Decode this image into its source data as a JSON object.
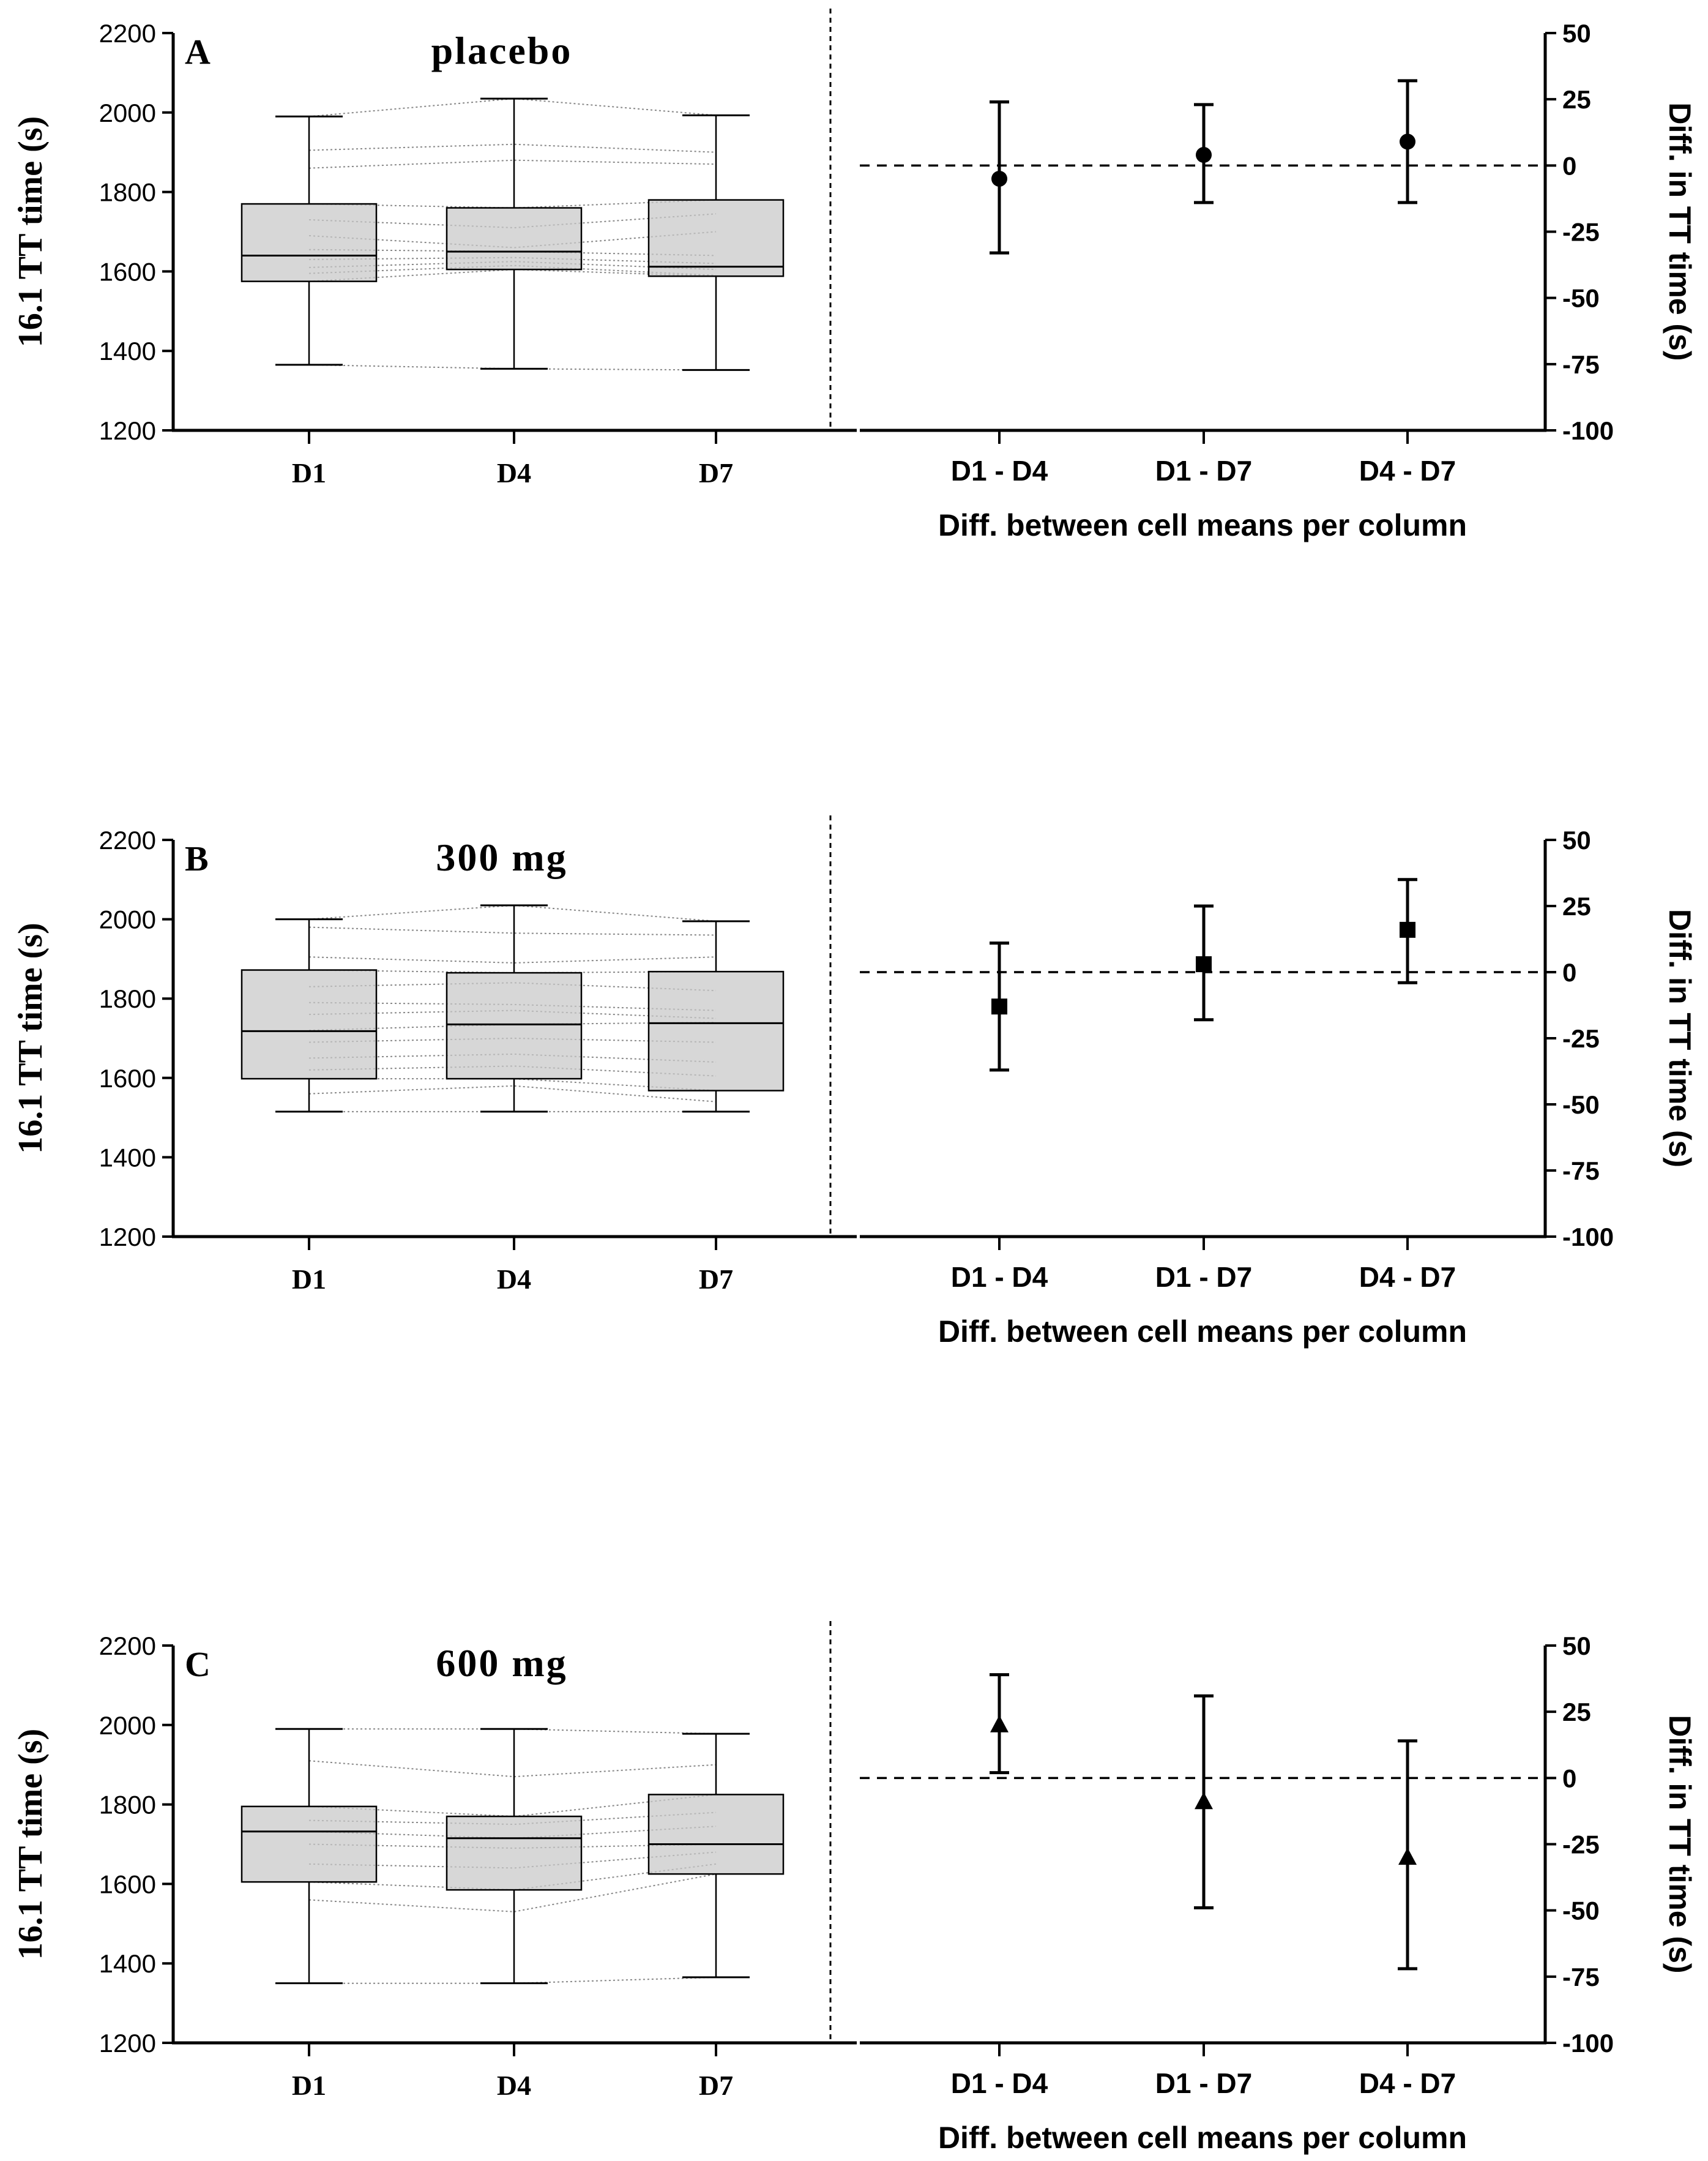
{
  "chart_data": [
    {
      "panel": "A",
      "title": "placebo",
      "left": {
        "type": "box",
        "ylabel": "16.1 TT time (s)",
        "ylim": [
          1200,
          2200
        ],
        "yticks": [
          1200,
          1400,
          1600,
          1800,
          2000,
          2200
        ],
        "categories": [
          "D1",
          "D4",
          "D7"
        ],
        "boxes": [
          {
            "min": 1365,
            "q1": 1575,
            "median": 1640,
            "q3": 1770,
            "max": 1990
          },
          {
            "min": 1355,
            "q1": 1605,
            "median": 1650,
            "q3": 1760,
            "max": 2035
          },
          {
            "min": 1352,
            "q1": 1588,
            "median": 1612,
            "q3": 1780,
            "max": 1993
          }
        ],
        "subjects": [
          [
            1990,
            2035,
            1993
          ],
          [
            1905,
            1920,
            1900
          ],
          [
            1860,
            1880,
            1870
          ],
          [
            1770,
            1760,
            1780
          ],
          [
            1730,
            1710,
            1745
          ],
          [
            1690,
            1660,
            1700
          ],
          [
            1655,
            1650,
            1640
          ],
          [
            1630,
            1635,
            1620
          ],
          [
            1610,
            1625,
            1605
          ],
          [
            1595,
            1615,
            1590
          ],
          [
            1575,
            1605,
            1588
          ],
          [
            1365,
            1355,
            1352
          ]
        ]
      },
      "right": {
        "type": "errorbar",
        "marker": "circle",
        "xlabel": "Diff. between cell means per column",
        "ylabel": "Diff. in TT time (s)",
        "ylim": [
          -100,
          50
        ],
        "yticks": [
          50,
          25,
          0,
          -25,
          -50,
          -75,
          -100
        ],
        "categories": [
          "D1 - D4",
          "D1 - D7",
          "D4 - D7"
        ],
        "values": [
          -5,
          4,
          9
        ],
        "lower": [
          -33,
          -14,
          -14
        ],
        "upper": [
          24,
          23,
          32
        ]
      }
    },
    {
      "panel": "B",
      "title": "300 mg",
      "left": {
        "type": "box",
        "ylabel": "16.1 TT time (s)",
        "ylim": [
          1200,
          2200
        ],
        "yticks": [
          1200,
          1400,
          1600,
          1800,
          2000,
          2200
        ],
        "categories": [
          "D1",
          "D4",
          "D7"
        ],
        "boxes": [
          {
            "min": 1515,
            "q1": 1598,
            "median": 1718,
            "q3": 1872,
            "max": 2000
          },
          {
            "min": 1515,
            "q1": 1598,
            "median": 1735,
            "q3": 1865,
            "max": 2035
          },
          {
            "min": 1515,
            "q1": 1568,
            "median": 1738,
            "q3": 1868,
            "max": 1995
          }
        ],
        "subjects": [
          [
            2000,
            2035,
            1995
          ],
          [
            1980,
            1965,
            1960
          ],
          [
            1905,
            1890,
            1905
          ],
          [
            1872,
            1865,
            1868
          ],
          [
            1830,
            1840,
            1820
          ],
          [
            1790,
            1785,
            1770
          ],
          [
            1760,
            1770,
            1750
          ],
          [
            1720,
            1735,
            1740
          ],
          [
            1690,
            1700,
            1690
          ],
          [
            1650,
            1660,
            1640
          ],
          [
            1620,
            1630,
            1605
          ],
          [
            1598,
            1598,
            1568
          ],
          [
            1560,
            1580,
            1540
          ],
          [
            1515,
            1515,
            1515
          ]
        ]
      },
      "right": {
        "type": "errorbar",
        "marker": "square",
        "xlabel": "Diff. between cell means per column",
        "ylabel": "Diff. in TT time (s)",
        "ylim": [
          -100,
          50
        ],
        "yticks": [
          50,
          25,
          0,
          -25,
          -50,
          -75,
          -100
        ],
        "categories": [
          "D1 - D4",
          "D1 - D7",
          "D4 - D7"
        ],
        "values": [
          -13,
          3,
          16
        ],
        "lower": [
          -37,
          -18,
          -4
        ],
        "upper": [
          11,
          25,
          35
        ]
      }
    },
    {
      "panel": "C",
      "title": "600 mg",
      "left": {
        "type": "box",
        "ylabel": "16.1 TT time (s)",
        "ylim": [
          1200,
          2200
        ],
        "yticks": [
          1200,
          1400,
          1600,
          1800,
          2000,
          2200
        ],
        "categories": [
          "D1",
          "D4",
          "D7"
        ],
        "boxes": [
          {
            "min": 1350,
            "q1": 1605,
            "median": 1732,
            "q3": 1795,
            "max": 1990
          },
          {
            "min": 1350,
            "q1": 1585,
            "median": 1715,
            "q3": 1770,
            "max": 1990
          },
          {
            "min": 1365,
            "q1": 1625,
            "median": 1700,
            "q3": 1825,
            "max": 1978
          }
        ],
        "subjects": [
          [
            1990,
            1990,
            1978
          ],
          [
            1910,
            1870,
            1900
          ],
          [
            1795,
            1770,
            1825
          ],
          [
            1760,
            1750,
            1780
          ],
          [
            1732,
            1715,
            1745
          ],
          [
            1700,
            1690,
            1700
          ],
          [
            1650,
            1640,
            1680
          ],
          [
            1605,
            1585,
            1650
          ],
          [
            1560,
            1530,
            1625
          ],
          [
            1350,
            1350,
            1365
          ]
        ]
      },
      "right": {
        "type": "errorbar",
        "marker": "triangle",
        "xlabel": "Diff. between cell means per column",
        "ylabel": "Diff. in TT time (s)",
        "ylim": [
          -100,
          50
        ],
        "yticks": [
          50,
          25,
          0,
          -25,
          -50,
          -75,
          -100
        ],
        "categories": [
          "D1 - D4",
          "D1 - D7",
          "D4 - D7"
        ],
        "values": [
          20,
          -9,
          -30
        ],
        "lower": [
          2,
          -49,
          -72
        ],
        "upper": [
          39,
          31,
          14
        ]
      }
    }
  ]
}
